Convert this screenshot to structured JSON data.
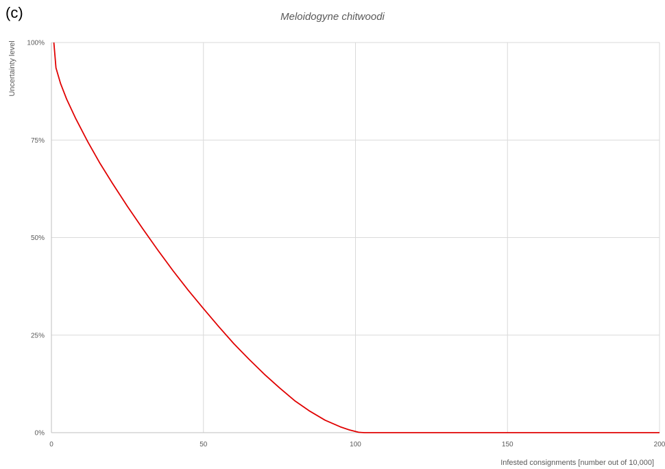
{
  "panel_label": "(c)",
  "chart_data": {
    "type": "line",
    "title": "Meloidogyne chitwoodi",
    "xlabel": "Infested consignments [number out of 10,000]",
    "ylabel": "Uncertainty level",
    "xlim": [
      0,
      200
    ],
    "ylim": [
      0,
      100
    ],
    "x_ticks": [
      0,
      50,
      100,
      150,
      200
    ],
    "x_tick_labels": [
      "0",
      "50",
      "100",
      "150",
      "200"
    ],
    "y_ticks": [
      0,
      25,
      50,
      75,
      100
    ],
    "y_tick_labels": [
      "0%",
      "25%",
      "50%",
      "75%",
      "100%"
    ],
    "grid": true,
    "legend": "none",
    "series": [
      {
        "color": "#e00000",
        "x": [
          0.8,
          1.5,
          3,
          5,
          8,
          12,
          16,
          20,
          25,
          30,
          35,
          40,
          45,
          50,
          55,
          60,
          65,
          70,
          75,
          80,
          85,
          90,
          95,
          98,
          100,
          101,
          102,
          103,
          104,
          105,
          120,
          150,
          180,
          200
        ],
        "y": [
          100,
          93.5,
          89.5,
          85.5,
          80.5,
          74.5,
          69,
          64,
          58,
          52.3,
          46.8,
          41.5,
          36.5,
          31.8,
          27.2,
          22.8,
          18.8,
          15,
          11.5,
          8.2,
          5.5,
          3.2,
          1.5,
          0.7,
          0.3,
          0.1,
          0.05,
          0,
          0,
          0,
          0,
          0,
          0,
          0
        ]
      }
    ]
  }
}
